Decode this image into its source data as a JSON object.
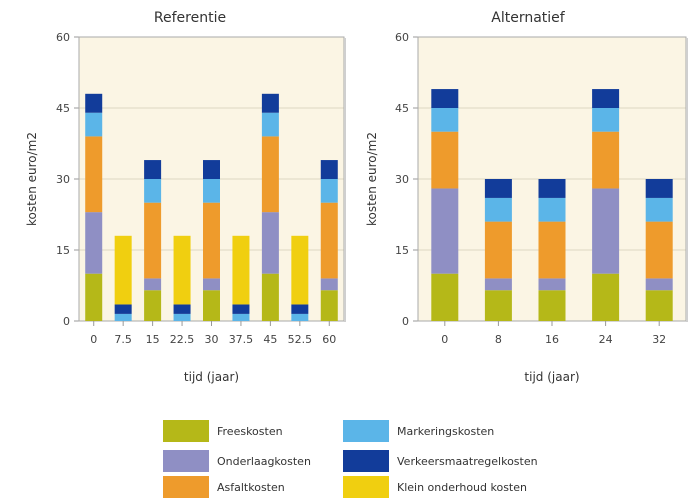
{
  "chart_data": [
    {
      "type": "bar",
      "stacked": true,
      "title": "Referentie",
      "xlabel": "tijd (jaar)",
      "ylabel": "kosten euro/m2",
      "ylim": [
        0,
        60
      ],
      "yticks": [
        0,
        15,
        30,
        45,
        60
      ],
      "categories": [
        "0",
        "7.5",
        "15",
        "22.5",
        "30",
        "37.5",
        "45",
        "52.5",
        "60"
      ],
      "series": [
        {
          "name": "Freeskosten",
          "values": [
            10,
            0,
            6.5,
            0,
            6.5,
            0,
            10,
            0,
            6.5
          ]
        },
        {
          "name": "Onderlaagkosten",
          "values": [
            13,
            0,
            2.5,
            0,
            2.5,
            0,
            13,
            0,
            2.5
          ]
        },
        {
          "name": "Asfaltkosten",
          "values": [
            16,
            0,
            16,
            0,
            16,
            0,
            16,
            0,
            16
          ]
        },
        {
          "name": "Markeringskosten",
          "values": [
            5,
            1.5,
            5,
            1.5,
            5,
            1.5,
            5,
            1.5,
            5
          ]
        },
        {
          "name": "Verkeersmaatregelkosten",
          "values": [
            4,
            2,
            4,
            2,
            4,
            2,
            4,
            2,
            4
          ]
        },
        {
          "name": "Klein onderhoud kosten",
          "values": [
            0,
            14.5,
            0,
            14.5,
            0,
            14.5,
            0,
            14.5,
            0
          ]
        }
      ]
    },
    {
      "type": "bar",
      "stacked": true,
      "title": "Alternatief",
      "xlabel": "tijd (jaar)",
      "ylabel": "kosten euro/m2",
      "ylim": [
        0,
        60
      ],
      "yticks": [
        0,
        15,
        30,
        45,
        60
      ],
      "categories": [
        "0",
        "8",
        "16",
        "24",
        "32"
      ],
      "series": [
        {
          "name": "Freeskosten",
          "values": [
            10,
            6.5,
            6.5,
            10,
            6.5
          ]
        },
        {
          "name": "Onderlaagkosten",
          "values": [
            18,
            2.5,
            2.5,
            18,
            2.5
          ]
        },
        {
          "name": "Asfaltkosten",
          "values": [
            12,
            12,
            12,
            12,
            12
          ]
        },
        {
          "name": "Markeringskosten",
          "values": [
            5,
            5,
            5,
            5,
            5
          ]
        },
        {
          "name": "Verkeersmaatregelkosten",
          "values": [
            4,
            4,
            4,
            4,
            4
          ]
        },
        {
          "name": "Klein onderhoud kosten",
          "values": [
            0,
            0,
            0,
            0,
            0
          ]
        }
      ]
    }
  ],
  "legend": {
    "items": [
      {
        "label": "Freeskosten",
        "color": "#b5b818"
      },
      {
        "label": "Markeringskosten",
        "color": "#5bb5e8"
      },
      {
        "label": "Onderlaagkosten",
        "color": "#8f8fc4"
      },
      {
        "label": "Verkeersmaatregelkosten",
        "color": "#123c9a"
      },
      {
        "label": "Asfaltkosten",
        "color": "#ee9b2c"
      },
      {
        "label": "Klein onderhoud kosten",
        "color": "#f0cf10"
      }
    ]
  },
  "colors": {
    "plot_background": "#fbf5e4",
    "axis": "#999999"
  }
}
